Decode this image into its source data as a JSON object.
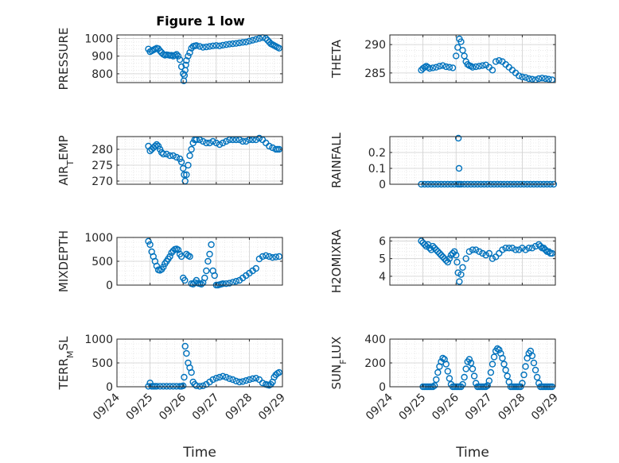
{
  "title": "Figure 1 low",
  "marker_color": "#0072BD",
  "time_ticks": [
    "09/24",
    "09/25",
    "09/26",
    "09/27",
    "09/28",
    "09/29"
  ],
  "xlabel": "Time",
  "chart_data": [
    {
      "type": "scatter",
      "ylabel": "PRESSURE",
      "ylim": [
        750,
        1020
      ],
      "yticks": [
        800,
        900,
        1000
      ],
      "grid": true,
      "x": [
        24.95,
        25.0,
        25.05,
        25.1,
        25.15,
        25.2,
        25.25,
        25.3,
        25.35,
        25.4,
        25.45,
        25.5,
        25.55,
        25.6,
        25.65,
        25.7,
        25.75,
        25.8,
        25.85,
        25.9,
        25.95,
        26.0,
        26.02,
        26.04,
        26.06,
        26.08,
        26.1,
        26.15,
        26.2,
        26.25,
        26.3,
        26.35,
        26.4,
        26.5,
        26.6,
        26.7,
        26.8,
        26.9,
        27.0,
        27.1,
        27.2,
        27.3,
        27.4,
        27.5,
        27.6,
        27.7,
        27.8,
        27.9,
        28.0,
        28.1,
        28.2,
        28.3,
        28.4,
        28.5,
        28.55,
        28.6,
        28.65,
        28.7,
        28.75,
        28.8,
        28.85,
        28.9
      ],
      "y": [
        940,
        925,
        930,
        935,
        940,
        945,
        942,
        930,
        920,
        910,
        905,
        908,
        906,
        904,
        905,
        900,
        905,
        910,
        900,
        880,
        840,
        800,
        760,
        790,
        820,
        850,
        875,
        900,
        920,
        945,
        955,
        958,
        960,
        955,
        950,
        952,
        955,
        958,
        960,
        958,
        962,
        965,
        968,
        970,
        972,
        975,
        978,
        980,
        985,
        990,
        995,
        1000,
        1005,
        1000,
        990,
        980,
        970,
        965,
        960,
        955,
        950,
        945
      ]
    },
    {
      "type": "scatter",
      "ylabel": "THETA",
      "ylim": [
        283.3,
        291.7
      ],
      "yticks": [
        285,
        290
      ],
      "grid": true,
      "x": [
        24.95,
        25.0,
        25.05,
        25.1,
        25.15,
        25.2,
        25.3,
        25.4,
        25.5,
        25.6,
        25.7,
        25.8,
        25.9,
        26.0,
        26.05,
        26.1,
        26.15,
        26.2,
        26.25,
        26.3,
        26.35,
        26.4,
        26.45,
        26.5,
        26.6,
        26.7,
        26.8,
        26.9,
        27.0,
        27.1,
        27.2,
        27.3,
        27.4,
        27.5,
        27.6,
        27.7,
        27.8,
        27.9,
        28.0,
        28.1,
        28.2,
        28.3,
        28.4,
        28.5,
        28.6,
        28.7,
        28.8,
        28.9
      ],
      "y": [
        285.5,
        285.8,
        286.0,
        286.2,
        286.0,
        285.8,
        285.9,
        286.0,
        286.2,
        286.3,
        286.1,
        286.0,
        285.9,
        288.0,
        289.5,
        291.0,
        290.5,
        289.0,
        288.0,
        287.0,
        286.5,
        286.3,
        286.2,
        286.0,
        286.1,
        286.2,
        286.3,
        286.4,
        286.0,
        285.5,
        287.0,
        287.2,
        287.0,
        286.5,
        286.0,
        285.5,
        285.0,
        284.5,
        284.3,
        284.2,
        284.0,
        283.9,
        283.8,
        284.0,
        284.1,
        284.0,
        283.9,
        283.8
      ]
    },
    {
      "type": "scatter",
      "ylabel": "AIR_TEMP",
      "ylim": [
        269,
        284
      ],
      "yticks": [
        270,
        275,
        280
      ],
      "grid": true,
      "x": [
        24.95,
        25.0,
        25.05,
        25.1,
        25.15,
        25.2,
        25.25,
        25.3,
        25.35,
        25.4,
        25.5,
        25.6,
        25.7,
        25.8,
        25.9,
        25.95,
        26.0,
        26.03,
        26.06,
        26.1,
        26.15,
        26.2,
        26.25,
        26.3,
        26.35,
        26.4,
        26.5,
        26.6,
        26.7,
        26.8,
        26.9,
        27.0,
        27.1,
        27.2,
        27.3,
        27.4,
        27.5,
        27.6,
        27.7,
        27.8,
        27.9,
        28.0,
        28.1,
        28.2,
        28.3,
        28.4,
        28.5,
        28.6,
        28.7,
        28.8,
        28.85,
        28.9
      ],
      "y": [
        281.0,
        279.5,
        280.0,
        280.5,
        281.0,
        281.5,
        281.0,
        280.0,
        279.0,
        278.5,
        278.5,
        278.0,
        278.0,
        277.5,
        277.0,
        276.0,
        274.0,
        272.0,
        270.0,
        272.0,
        275.0,
        278.0,
        280.0,
        282.0,
        283.0,
        283.0,
        283.0,
        282.5,
        282.0,
        282.0,
        282.5,
        282.0,
        281.5,
        282.0,
        282.5,
        283.0,
        283.0,
        283.0,
        283.0,
        282.5,
        282.5,
        283.0,
        283.0,
        283.0,
        283.5,
        283.0,
        282.0,
        281.0,
        280.5,
        280.0,
        280.0,
        280.0
      ]
    },
    {
      "type": "scatter",
      "ylabel": "RAINFALL",
      "ylim": [
        0,
        0.3
      ],
      "yticks": [
        0,
        0.1,
        0.2
      ],
      "grid": true,
      "x": [
        24.95,
        25.05,
        25.15,
        25.25,
        25.35,
        25.45,
        25.55,
        25.65,
        25.75,
        25.85,
        25.95,
        26.05,
        26.1,
        26.15,
        26.25,
        26.35,
        26.45,
        26.55,
        26.65,
        26.75,
        26.85,
        26.95,
        27.05,
        27.15,
        27.25,
        27.35,
        27.45,
        27.55,
        27.65,
        27.75,
        27.85,
        27.95,
        28.05,
        28.15,
        28.25,
        28.35,
        28.45,
        28.55,
        28.65,
        28.75,
        28.85,
        28.95,
        26.07,
        26.09
      ],
      "y": [
        0,
        0,
        0,
        0,
        0,
        0,
        0,
        0,
        0,
        0,
        0,
        0,
        0,
        0,
        0,
        0,
        0,
        0,
        0,
        0,
        0,
        0,
        0,
        0,
        0,
        0,
        0,
        0,
        0,
        0,
        0,
        0,
        0,
        0,
        0,
        0,
        0,
        0,
        0,
        0,
        0,
        0,
        0.29,
        0.1
      ]
    },
    {
      "type": "scatter",
      "ylabel": "MIXDEPTH",
      "ylim": [
        0,
        1000
      ],
      "yticks": [
        0,
        500,
        1000
      ],
      "grid": true,
      "x": [
        24.95,
        25.0,
        25.05,
        25.1,
        25.15,
        25.2,
        25.25,
        25.3,
        25.35,
        25.4,
        25.45,
        25.5,
        25.55,
        25.6,
        25.65,
        25.7,
        25.75,
        25.8,
        25.85,
        25.9,
        25.95,
        26.0,
        26.05,
        26.1,
        26.15,
        26.2,
        26.25,
        26.3,
        26.35,
        26.4,
        26.45,
        26.5,
        26.55,
        26.6,
        26.65,
        26.7,
        26.75,
        26.8,
        26.85,
        26.9,
        26.95,
        27.0,
        27.05,
        27.1,
        27.15,
        27.2,
        27.3,
        27.4,
        27.5,
        27.6,
        27.7,
        27.8,
        27.9,
        28.0,
        28.1,
        28.2,
        28.3,
        28.4,
        28.5,
        28.6,
        28.7,
        28.8,
        28.9
      ],
      "y": [
        920,
        850,
        700,
        600,
        500,
        400,
        320,
        310,
        330,
        380,
        450,
        500,
        550,
        600,
        680,
        720,
        750,
        760,
        740,
        650,
        600,
        150,
        100,
        650,
        620,
        600,
        30,
        20,
        50,
        100,
        40,
        30,
        20,
        50,
        150,
        300,
        500,
        650,
        850,
        300,
        200,
        0,
        0,
        10,
        20,
        30,
        30,
        40,
        60,
        80,
        100,
        150,
        200,
        250,
        300,
        350,
        550,
        600,
        620,
        600,
        580,
        590,
        600
      ]
    },
    {
      "type": "scatter",
      "ylabel": "H2OMIXRA",
      "ylim": [
        3.5,
        6.2
      ],
      "yticks": [
        4,
        5,
        6
      ],
      "grid": true,
      "x": [
        24.95,
        25.0,
        25.05,
        25.1,
        25.15,
        25.2,
        25.25,
        25.3,
        25.35,
        25.4,
        25.45,
        25.5,
        25.55,
        25.6,
        25.65,
        25.7,
        25.75,
        25.8,
        25.85,
        25.9,
        25.95,
        26.0,
        26.03,
        26.06,
        26.1,
        26.15,
        26.2,
        26.3,
        26.4,
        26.5,
        26.6,
        26.7,
        26.8,
        26.9,
        27.0,
        27.1,
        27.2,
        27.3,
        27.4,
        27.5,
        27.6,
        27.7,
        27.8,
        27.9,
        28.0,
        28.1,
        28.2,
        28.3,
        28.4,
        28.5,
        28.55,
        28.6,
        28.65,
        28.7,
        28.75,
        28.8,
        28.85,
        28.9
      ],
      "y": [
        6.0,
        5.9,
        5.8,
        5.7,
        5.8,
        5.6,
        5.5,
        5.7,
        5.6,
        5.5,
        5.4,
        5.3,
        5.2,
        5.1,
        5.0,
        4.9,
        4.8,
        5.0,
        5.2,
        5.3,
        5.4,
        5.2,
        4.8,
        4.2,
        3.7,
        4.1,
        4.5,
        5.0,
        5.4,
        5.5,
        5.5,
        5.4,
        5.3,
        5.2,
        5.3,
        5.0,
        5.1,
        5.3,
        5.5,
        5.6,
        5.6,
        5.6,
        5.5,
        5.5,
        5.6,
        5.5,
        5.6,
        5.6,
        5.7,
        5.8,
        5.7,
        5.6,
        5.6,
        5.5,
        5.4,
        5.4,
        5.3,
        5.3
      ]
    },
    {
      "type": "scatter",
      "ylabel": "TERR_MSL",
      "ylim": [
        0,
        1000
      ],
      "yticks": [
        0,
        500,
        1000
      ],
      "grid": true,
      "x": [
        24.95,
        25.0,
        25.05,
        25.1,
        25.15,
        25.2,
        25.3,
        25.4,
        25.5,
        25.6,
        25.7,
        25.8,
        25.9,
        25.95,
        26.0,
        26.03,
        26.06,
        26.1,
        26.15,
        26.2,
        26.25,
        26.3,
        26.35,
        26.4,
        26.5,
        26.6,
        26.7,
        26.8,
        26.9,
        27.0,
        27.1,
        27.2,
        27.3,
        27.4,
        27.5,
        27.6,
        27.7,
        27.8,
        27.9,
        28.0,
        28.1,
        28.2,
        28.3,
        28.4,
        28.5,
        28.55,
        28.6,
        28.65,
        28.7,
        28.75,
        28.8,
        28.85,
        28.9
      ],
      "y": [
        10,
        80,
        10,
        10,
        10,
        10,
        10,
        10,
        10,
        10,
        10,
        10,
        10,
        10,
        20,
        200,
        850,
        700,
        500,
        400,
        300,
        100,
        50,
        20,
        10,
        20,
        50,
        100,
        150,
        180,
        200,
        220,
        200,
        170,
        150,
        120,
        100,
        110,
        130,
        150,
        170,
        180,
        150,
        80,
        50,
        40,
        30,
        50,
        100,
        200,
        250,
        280,
        300
      ]
    },
    {
      "type": "scatter",
      "ylabel": "SUN_FLUX",
      "ylim": [
        0,
        400
      ],
      "yticks": [
        0,
        200,
        400
      ],
      "grid": true,
      "x": [
        25.0,
        25.05,
        25.1,
        25.15,
        25.2,
        25.25,
        25.3,
        25.35,
        25.4,
        25.45,
        25.5,
        25.55,
        25.6,
        25.65,
        25.7,
        25.75,
        25.8,
        25.85,
        25.9,
        25.95,
        26.0,
        26.05,
        26.1,
        26.15,
        26.2,
        26.25,
        26.3,
        26.35,
        26.4,
        26.45,
        26.5,
        26.55,
        26.6,
        26.65,
        26.7,
        26.75,
        26.8,
        26.85,
        26.9,
        26.95,
        27.0,
        27.05,
        27.1,
        27.15,
        27.2,
        27.25,
        27.3,
        27.35,
        27.4,
        27.45,
        27.5,
        27.55,
        27.6,
        27.65,
        27.7,
        27.75,
        27.8,
        27.85,
        27.9,
        27.95,
        28.0,
        28.05,
        28.1,
        28.15,
        28.2,
        28.25,
        28.3,
        28.35,
        28.4,
        28.45,
        28.5,
        28.55,
        28.6,
        28.65,
        28.7,
        28.75,
        28.8,
        28.85,
        28.9
      ],
      "y": [
        0,
        0,
        0,
        0,
        0,
        0,
        0,
        10,
        60,
        120,
        170,
        210,
        240,
        230,
        190,
        130,
        70,
        20,
        0,
        0,
        0,
        0,
        0,
        0,
        20,
        80,
        150,
        210,
        230,
        200,
        150,
        90,
        30,
        0,
        0,
        0,
        0,
        0,
        0,
        10,
        50,
        120,
        190,
        250,
        300,
        320,
        310,
        280,
        240,
        190,
        140,
        90,
        40,
        0,
        0,
        0,
        0,
        0,
        0,
        0,
        30,
        100,
        170,
        240,
        280,
        300,
        260,
        200,
        140,
        80,
        30,
        0,
        0,
        0,
        0,
        0,
        0,
        0,
        0
      ]
    }
  ]
}
